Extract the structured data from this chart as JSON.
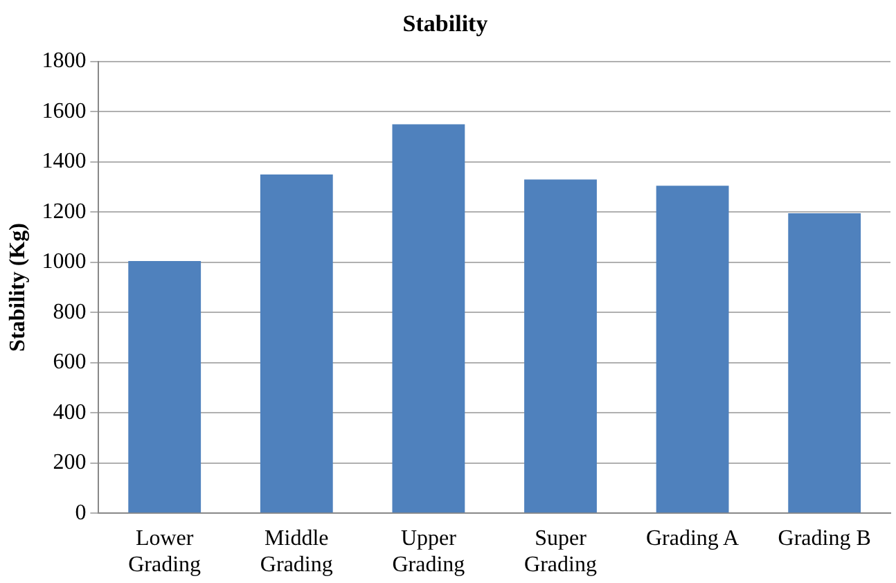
{
  "chart_data": {
    "type": "bar",
    "title": "Stability",
    "ylabel": "Stability (Kg)",
    "categories": [
      "Lower\nGrading",
      "Middle\nGrading",
      "Upper\nGrading",
      "Super\nGrading",
      "Grading A",
      "Grading B"
    ],
    "values": [
      1005,
      1350,
      1550,
      1330,
      1305,
      1195
    ],
    "color": "#4f81bd",
    "ylim": [
      0,
      1800
    ],
    "yticks": [
      0,
      200,
      400,
      600,
      800,
      1000,
      1200,
      1400,
      1600,
      1800
    ],
    "grid": "y"
  }
}
